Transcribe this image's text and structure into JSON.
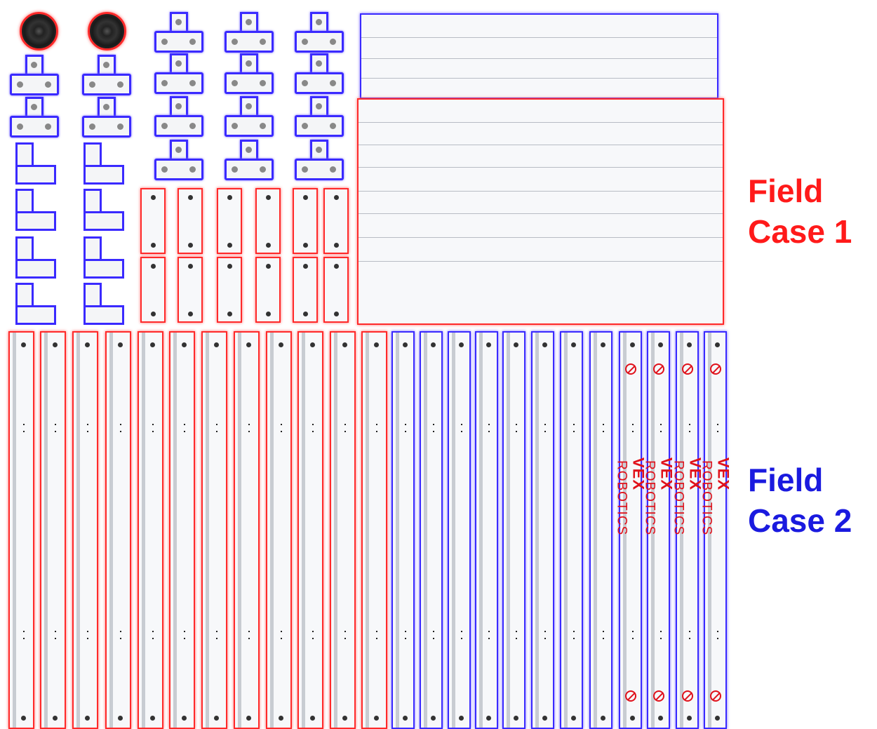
{
  "labels": {
    "case1_line1": "Field",
    "case1_line2": "Case 1",
    "case2_line1": "Field",
    "case2_line2": "Case 2"
  },
  "logo": {
    "brand": "VEX",
    "sub": "ROBOTICS"
  },
  "colors": {
    "case1": "#ff1a1a",
    "case2": "#1a1adf",
    "case1_outline": "#ff2a2a",
    "case2_outline": "#3a2aff",
    "logo": "#e0101a"
  },
  "parts": {
    "discs": 2,
    "t_brackets": 16,
    "l_brackets": 8,
    "short_posts": 12,
    "panels": 2,
    "long_rails_case1": 12,
    "long_rails_case2": 12,
    "logo_rails": 4
  }
}
